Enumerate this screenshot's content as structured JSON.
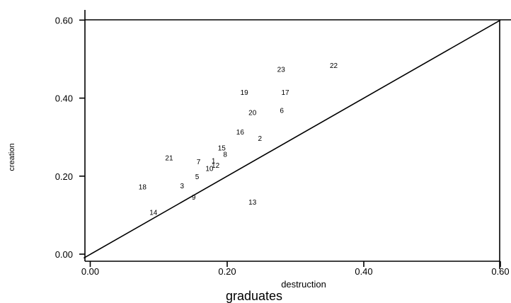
{
  "chart_data": {
    "type": "scatter",
    "xlabel": "destruction",
    "ylabel": "creation",
    "caption": "graduates",
    "xlim": [
      -0.01,
      0.6
    ],
    "ylim": [
      -0.01,
      0.6
    ],
    "xticks": [
      "0.00",
      "0.20",
      "0.40",
      "0.60"
    ],
    "yticks": [
      "0.00",
      "0.20",
      "0.40",
      "0.60"
    ],
    "reference_line": "y = x",
    "grid": false,
    "points": [
      {
        "label": "1",
        "x": 0.18,
        "y": 0.24
      },
      {
        "label": "2",
        "x": 0.248,
        "y": 0.297
      },
      {
        "label": "3",
        "x": 0.134,
        "y": 0.175
      },
      {
        "label": "5",
        "x": 0.156,
        "y": 0.199
      },
      {
        "label": "6",
        "x": 0.28,
        "y": 0.368
      },
      {
        "label": "7",
        "x": 0.158,
        "y": 0.237
      },
      {
        "label": "8",
        "x": 0.197,
        "y": 0.256
      },
      {
        "label": "9",
        "x": 0.151,
        "y": 0.146
      },
      {
        "label": "10",
        "x": 0.174,
        "y": 0.22
      },
      {
        "label": "12",
        "x": 0.183,
        "y": 0.228
      },
      {
        "label": "13",
        "x": 0.237,
        "y": 0.133
      },
      {
        "label": "14",
        "x": 0.092,
        "y": 0.107
      },
      {
        "label": "15",
        "x": 0.192,
        "y": 0.272
      },
      {
        "label": "16",
        "x": 0.219,
        "y": 0.313
      },
      {
        "label": "17",
        "x": 0.285,
        "y": 0.415
      },
      {
        "label": "18",
        "x": 0.076,
        "y": 0.172
      },
      {
        "label": "19",
        "x": 0.225,
        "y": 0.415
      },
      {
        "label": "20",
        "x": 0.237,
        "y": 0.363
      },
      {
        "label": "21",
        "x": 0.115,
        "y": 0.247
      },
      {
        "label": "22",
        "x": 0.356,
        "y": 0.484
      },
      {
        "label": "23",
        "x": 0.279,
        "y": 0.474
      }
    ]
  }
}
